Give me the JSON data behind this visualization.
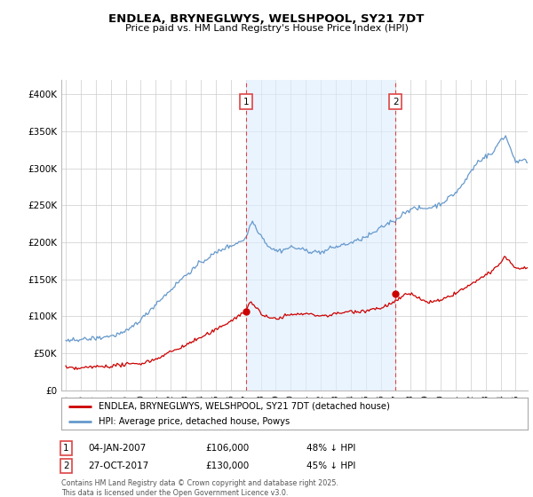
{
  "title": "ENDLEA, BRYNEGLWYS, WELSHPOOL, SY21 7DT",
  "subtitle": "Price paid vs. HM Land Registry's House Price Index (HPI)",
  "ylim": [
    0,
    420000
  ],
  "yticks": [
    0,
    50000,
    100000,
    150000,
    200000,
    250000,
    300000,
    350000,
    400000
  ],
  "ytick_labels": [
    "£0",
    "£50K",
    "£100K",
    "£150K",
    "£200K",
    "£250K",
    "£300K",
    "£350K",
    "£400K"
  ],
  "hpi_color": "#6699cc",
  "price_color": "#cc0000",
  "shade_color": "#ddeeff",
  "marker1_year": 2007,
  "marker2_year": 2017,
  "marker1_price": 106000,
  "marker2_price": 130000,
  "marker1_label_text": "1",
  "marker2_label_text": "2",
  "marker1_date": "04-JAN-2007",
  "marker1_price_str": "£106,000",
  "marker1_note": "48% ↓ HPI",
  "marker2_date": "27-OCT-2017",
  "marker2_price_str": "£130,000",
  "marker2_note": "45% ↓ HPI",
  "legend_line1": "ENDLEA, BRYNEGLWYS, WELSHPOOL, SY21 7DT (detached house)",
  "legend_line2": "HPI: Average price, detached house, Powys",
  "footer": "Contains HM Land Registry data © Crown copyright and database right 2025.\nThis data is licensed under the Open Government Licence v3.0.",
  "vline_color": "#dd4444",
  "background_color": "#ffffff",
  "grid_color": "#cccccc",
  "marker_box_color": "#dd4444"
}
